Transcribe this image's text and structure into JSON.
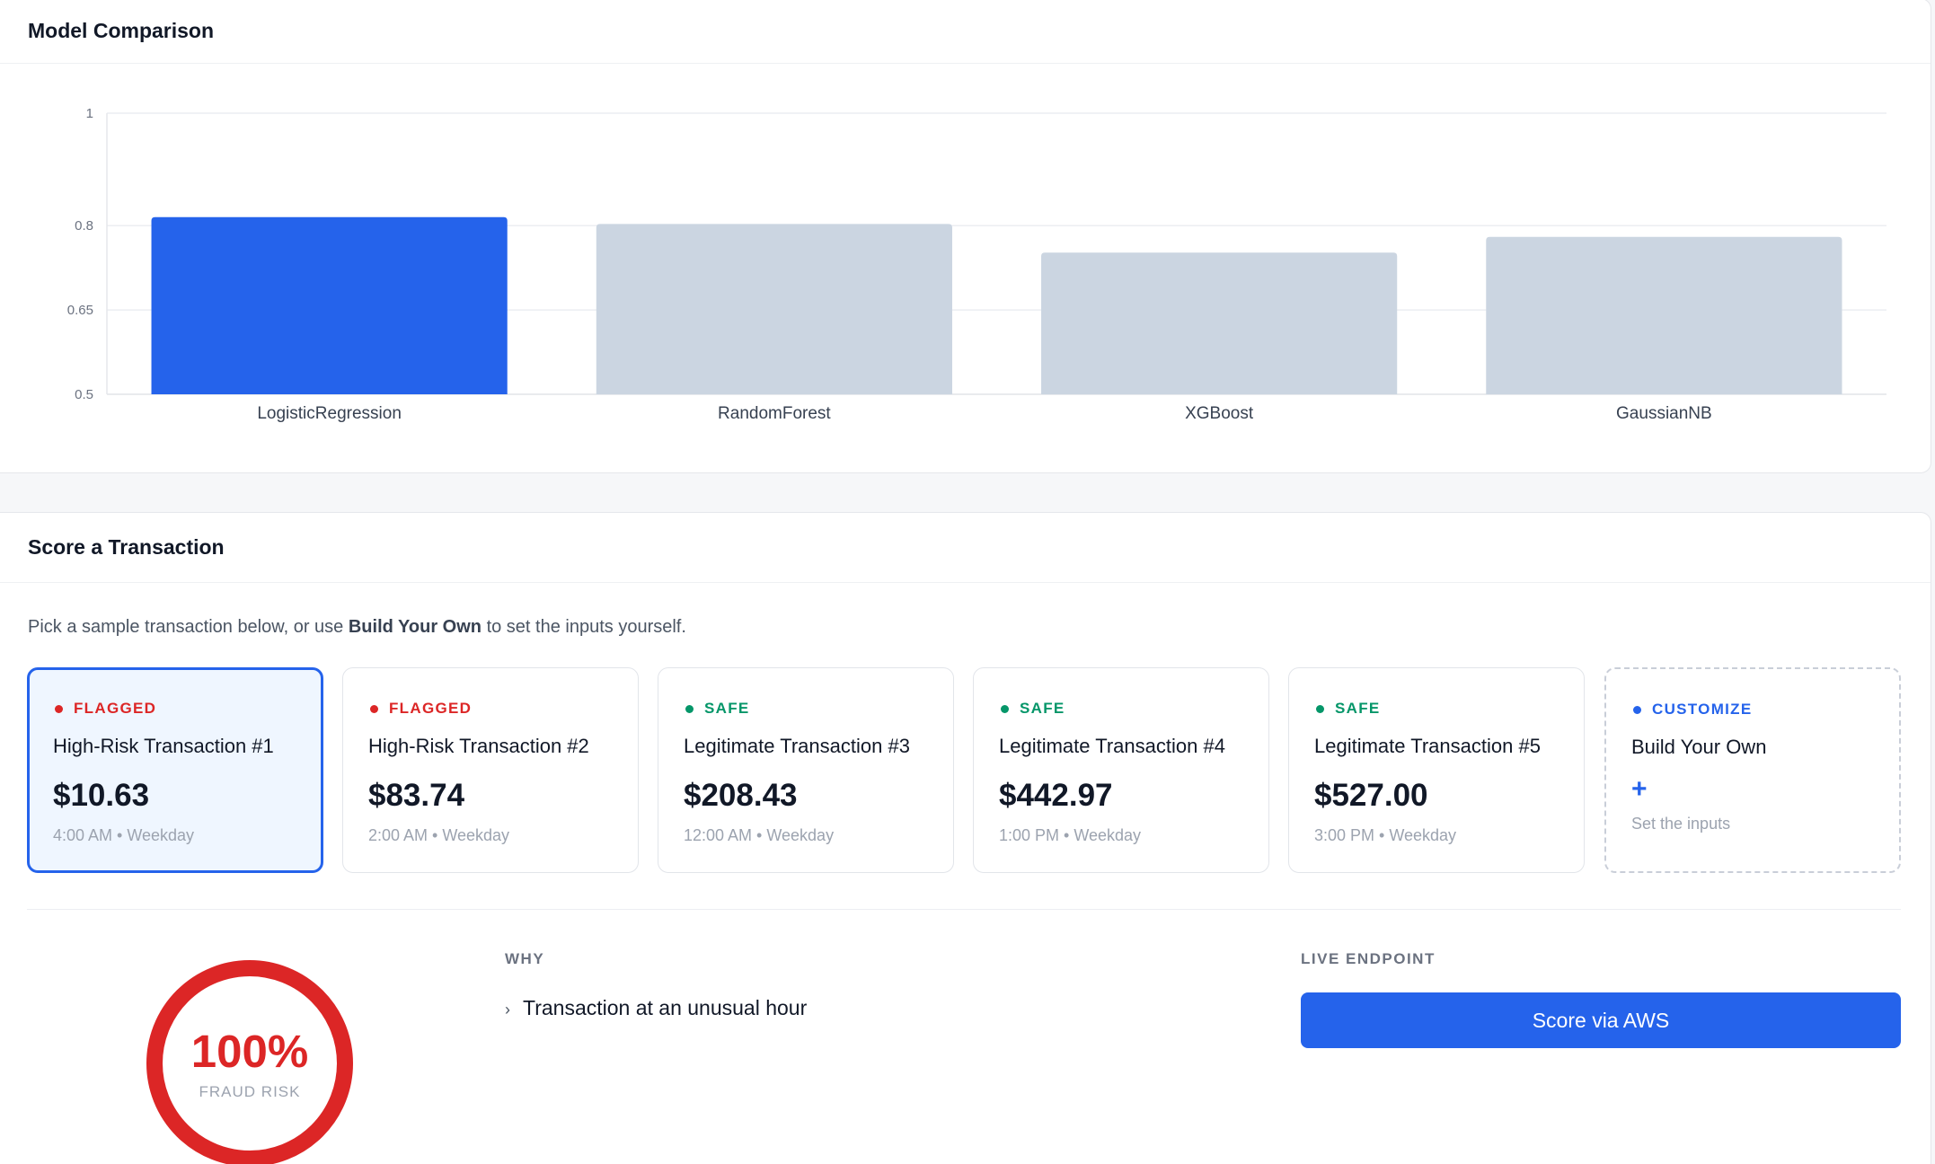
{
  "model_comparison": {
    "title": "Model Comparison",
    "chart_data": {
      "type": "bar",
      "title": "",
      "xlabel": "",
      "ylabel": "",
      "categories": [
        "LogisticRegression",
        "RandomForest",
        "XGBoost",
        "GaussianNB"
      ],
      "values": [
        0.815,
        0.803,
        0.752,
        0.78
      ],
      "highlighted_index": 0,
      "ylim": [
        0.5,
        1
      ],
      "yticks": [
        0.5,
        0.65,
        0.8,
        1
      ],
      "ytick_labels": [
        "0.5",
        "0.65",
        "0.8",
        "1"
      ],
      "grid": true,
      "colors": {
        "highlight": "#2563eb",
        "default": "#cbd5e1"
      }
    }
  },
  "score": {
    "title": "Score a Transaction",
    "intro_before": "Pick a sample transaction below, or use ",
    "intro_bold": "Build Your Own",
    "intro_after": " to set the inputs yourself.",
    "tiles": [
      {
        "status": "FLAGGED",
        "status_color": "#dc2626",
        "name": "High-Risk Transaction #1",
        "amount": "$10.63",
        "meta": "4:00 AM • Weekday",
        "selected": true
      },
      {
        "status": "FLAGGED",
        "status_color": "#dc2626",
        "name": "High-Risk Transaction #2",
        "amount": "$83.74",
        "meta": "2:00 AM • Weekday",
        "selected": false
      },
      {
        "status": "SAFE",
        "status_color": "#059669",
        "name": "Legitimate Transaction #3",
        "amount": "$208.43",
        "meta": "12:00 AM • Weekday",
        "selected": false
      },
      {
        "status": "SAFE",
        "status_color": "#059669",
        "name": "Legitimate Transaction #4",
        "amount": "$442.97",
        "meta": "1:00 PM • Weekday",
        "selected": false
      },
      {
        "status": "SAFE",
        "status_color": "#059669",
        "name": "Legitimate Transaction #5",
        "amount": "$527.00",
        "meta": "3:00 PM • Weekday",
        "selected": false
      }
    ],
    "custom_tile": {
      "status": "CUSTOMIZE",
      "status_color": "#2563eb",
      "name": "Build Your Own",
      "plus": "+",
      "meta": "Set the inputs"
    },
    "result": {
      "risk_value": "100%",
      "risk_fraction": 1.0,
      "risk_label": "FRAUD RISK",
      "risk_color": "#dc2626",
      "why_label": "WHY",
      "reasons": [
        "Transaction at an unusual hour"
      ],
      "endpoint_label": "LIVE ENDPOINT",
      "endpoint_button": "Score via AWS",
      "endpoint_color": "#2563eb"
    }
  }
}
